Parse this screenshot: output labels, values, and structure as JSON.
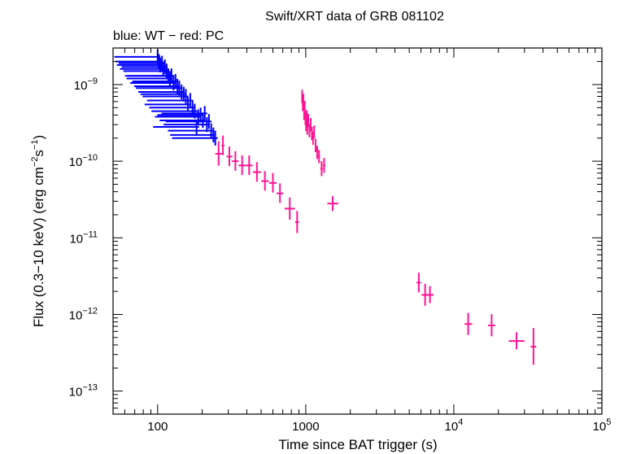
{
  "chart_data": {
    "type": "scatter",
    "title": "Swift/XRT data of GRB 081102",
    "subtitle": "blue: WT − red: PC",
    "xlabel": "Time since BAT trigger (s)",
    "ylabel_parts": [
      "Flux (0.3−10 keV) (erg cm",
      "−2",
      "s",
      "−1",
      ")"
    ],
    "x_scale": "log",
    "y_scale": "log",
    "xlim": [
      50,
      100000
    ],
    "ylim": [
      5e-14,
      3e-09
    ],
    "x_ticks": [
      {
        "value": 100,
        "label": "100"
      },
      {
        "value": 1000,
        "label": "1000"
      },
      {
        "value": 10000,
        "base": "10",
        "exp": "4"
      },
      {
        "value": 100000,
        "base": "10",
        "exp": "5"
      }
    ],
    "y_ticks": [
      {
        "value": 1e-09,
        "base": "10",
        "exp": "−9"
      },
      {
        "value": 1e-10,
        "base": "10",
        "exp": "−10"
      },
      {
        "value": 1e-11,
        "base": "10",
        "exp": "−11"
      },
      {
        "value": 1e-12,
        "base": "10",
        "exp": "−12"
      },
      {
        "value": 1e-13,
        "base": "10",
        "exp": "−13"
      }
    ],
    "grid": false,
    "series": [
      {
        "name": "WT",
        "color": "#0000ff",
        "points": [
          [
            100,
            2.3e-09,
            1.96,
            1.04,
            1.25,
            0.8
          ],
          [
            102,
            2e-09,
            1.96,
            1.04,
            1.25,
            0.8
          ],
          [
            104,
            1.8e-09,
            1.96,
            1.04,
            1.25,
            0.8
          ],
          [
            107,
            1.9e-09,
            1.96,
            1.04,
            1.25,
            0.8
          ],
          [
            109,
            1.6e-09,
            1.96,
            1.04,
            1.25,
            0.8
          ],
          [
            112,
            1.7e-09,
            1.96,
            1.04,
            1.25,
            0.8
          ],
          [
            115,
            1.5e-09,
            1.96,
            1.04,
            1.25,
            0.8
          ],
          [
            118,
            1.3e-09,
            1.96,
            1.04,
            1.25,
            0.8
          ],
          [
            121,
            1.2e-09,
            1.96,
            1.04,
            1.25,
            0.8
          ],
          [
            124,
            1.3e-09,
            1.96,
            1.04,
            1.25,
            0.8
          ],
          [
            128,
            1.05e-09,
            1.96,
            1.04,
            1.25,
            0.8
          ],
          [
            132,
            1.1e-09,
            1.96,
            1.04,
            1.25,
            0.8
          ],
          [
            136,
            9.5e-10,
            1.96,
            1.04,
            1.25,
            0.8
          ],
          [
            140,
            9e-10,
            1.96,
            1.04,
            1.25,
            0.8
          ],
          [
            145,
            8e-10,
            1.96,
            1.04,
            1.25,
            0.8
          ],
          [
            150,
            7.5e-10,
            1.96,
            1.04,
            1.25,
            0.8
          ],
          [
            155,
            7e-10,
            1.96,
            1.04,
            1.25,
            0.8
          ],
          [
            160,
            5.5e-10,
            1.96,
            1.04,
            1.25,
            0.8
          ],
          [
            166,
            6.2e-10,
            1.96,
            1.04,
            1.25,
            0.8
          ],
          [
            172,
            5e-10,
            1.96,
            1.04,
            1.25,
            0.8
          ],
          [
            178,
            4.5e-10,
            1.96,
            1.04,
            1.25,
            0.8
          ],
          [
            183,
            2.8e-10,
            1.96,
            1.04,
            1.25,
            0.8
          ],
          [
            188,
            3.8e-10,
            1.96,
            1.04,
            1.25,
            0.8
          ],
          [
            195,
            4e-10,
            1.96,
            1.04,
            1.25,
            0.8
          ],
          [
            202,
            3.4e-10,
            1.96,
            1.04,
            1.25,
            0.8
          ],
          [
            208,
            4.2e-10,
            1.96,
            1.04,
            1.25,
            0.8
          ],
          [
            215,
            3e-10,
            1.96,
            1.04,
            1.25,
            0.8
          ],
          [
            222,
            3.3e-10,
            1.96,
            1.04,
            1.25,
            0.8
          ],
          [
            230,
            2.5e-10,
            1.96,
            1.04,
            1.25,
            0.8
          ],
          [
            238,
            2.2e-10,
            1.96,
            1.04,
            1.25,
            0.8
          ],
          [
            245,
            2e-10,
            1.96,
            1.04,
            1.25,
            0.8
          ]
        ]
      },
      {
        "name": "PC",
        "color": "#ff1493",
        "points": [
          [
            258,
            1.25e-10,
            245,
            272,
            1.45,
            0.7
          ],
          [
            276,
            1.6e-10,
            270,
            282,
            1.35,
            0.75
          ],
          [
            305,
            1.15e-10,
            292,
            320,
            1.35,
            0.75
          ],
          [
            335,
            1e-10,
            318,
            352,
            1.35,
            0.75
          ],
          [
            372,
            8.8e-11,
            352,
            392,
            1.35,
            0.75
          ],
          [
            415,
            8.8e-11,
            393,
            438,
            1.35,
            0.75
          ],
          [
            468,
            7.2e-11,
            440,
            498,
            1.35,
            0.75
          ],
          [
            530,
            5.5e-11,
            500,
            562,
            1.35,
            0.75
          ],
          [
            600,
            5.2e-11,
            565,
            635,
            1.35,
            0.75
          ],
          [
            670,
            3.8e-11,
            635,
            705,
            1.35,
            0.75
          ],
          [
            780,
            2.4e-11,
            720,
            845,
            1.4,
            0.72
          ],
          [
            875,
            1.6e-11,
            848,
            900,
            1.4,
            0.72
          ],
          [
            1520,
            2.8e-11,
            1400,
            1660,
            1.25,
            0.8
          ],
          [
            945,
            7e-10,
            940,
            950,
            1.22,
            0.82
          ],
          [
            955,
            5.5e-10,
            950,
            960,
            1.22,
            0.82
          ],
          [
            965,
            6.2e-10,
            960,
            970,
            1.22,
            0.82
          ],
          [
            975,
            4.2e-10,
            970,
            980,
            1.22,
            0.82
          ],
          [
            985,
            5e-10,
            980,
            990,
            1.22,
            0.82
          ],
          [
            995,
            3.6e-10,
            990,
            1000,
            1.22,
            0.82
          ],
          [
            1005,
            3e-10,
            1000,
            1010,
            1.22,
            0.82
          ],
          [
            1015,
            3.8e-10,
            1010,
            1020,
            1.22,
            0.82
          ],
          [
            1025,
            2.7e-10,
            1020,
            1030,
            1.22,
            0.82
          ],
          [
            1040,
            3.4e-10,
            1030,
            1050,
            1.22,
            0.82
          ],
          [
            1060,
            2.5e-10,
            1050,
            1070,
            1.22,
            0.82
          ],
          [
            1080,
            3e-10,
            1070,
            1090,
            1.22,
            0.82
          ],
          [
            1100,
            2.3e-10,
            1090,
            1110,
            1.22,
            0.82
          ],
          [
            1120,
            2e-10,
            1110,
            1130,
            1.22,
            0.82
          ],
          [
            1140,
            2.4e-10,
            1130,
            1150,
            1.22,
            0.82
          ],
          [
            1165,
            1.6e-10,
            1150,
            1180,
            1.22,
            0.82
          ],
          [
            1195,
            1.3e-10,
            1180,
            1210,
            1.22,
            0.82
          ],
          [
            1230,
            1.15e-10,
            1210,
            1250,
            1.22,
            0.82
          ],
          [
            1280,
            8e-11,
            1255,
            1305,
            1.25,
            0.8
          ],
          [
            1330,
            8.8e-11,
            1305,
            1355,
            1.25,
            0.8
          ],
          [
            5800,
            2.6e-12,
            5600,
            6000,
            1.35,
            0.75
          ],
          [
            6400,
            1.8e-12,
            6050,
            6750,
            1.4,
            0.72
          ],
          [
            6900,
            1.8e-12,
            6500,
            7300,
            1.3,
            0.78
          ],
          [
            12500,
            7.5e-13,
            11800,
            13300,
            1.4,
            0.72
          ],
          [
            18000,
            7.2e-13,
            17000,
            19000,
            1.4,
            0.72
          ],
          [
            26500,
            4.5e-13,
            23500,
            30000,
            1.3,
            0.78
          ],
          [
            34500,
            3.8e-13,
            33000,
            36000,
            1.75,
            0.58
          ]
        ]
      }
    ]
  }
}
